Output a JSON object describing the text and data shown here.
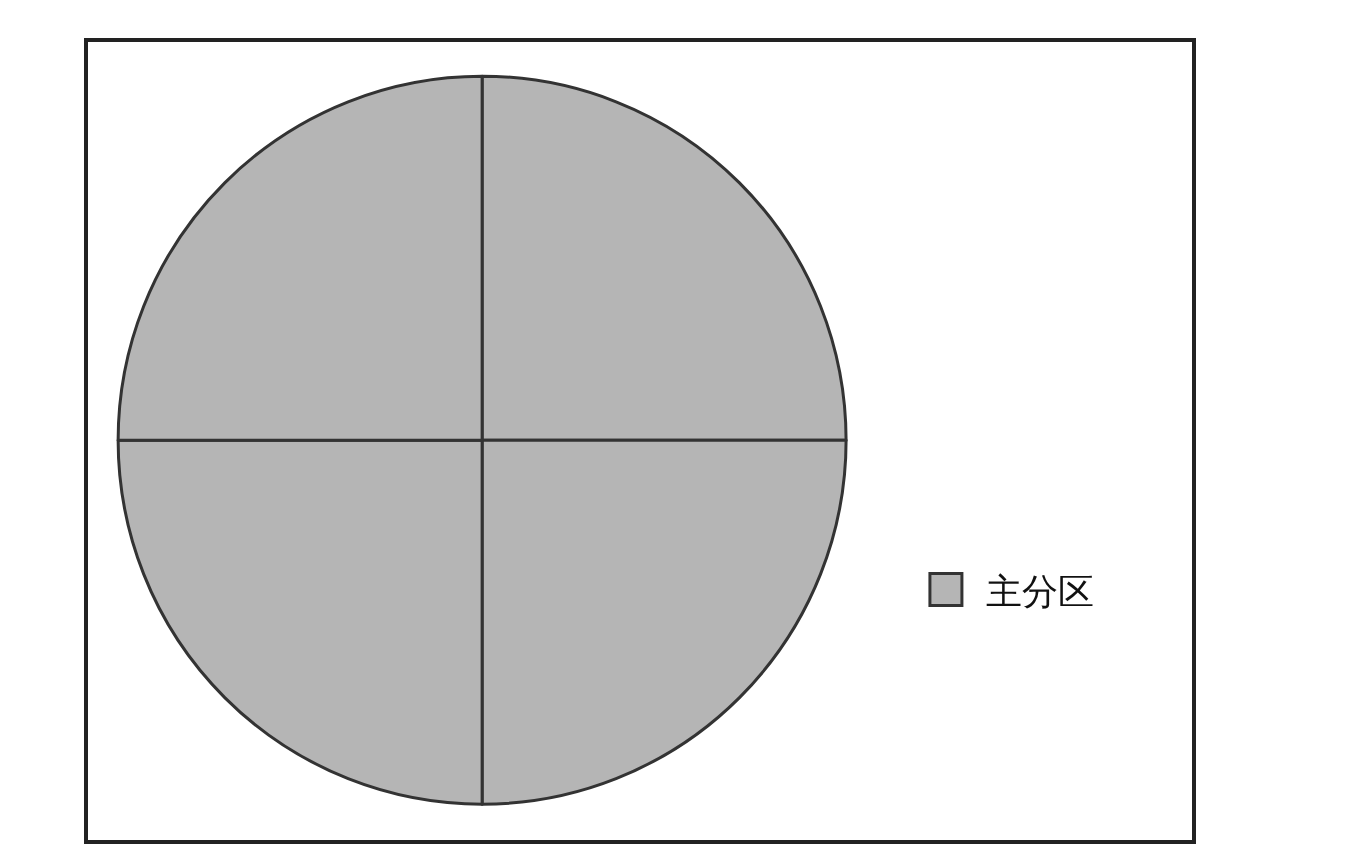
{
  "chart_data": {
    "type": "pie",
    "categories": [
      null,
      null,
      null,
      null
    ],
    "series": [
      {
        "name": "主分区",
        "color": "#b5b5b5",
        "values": [
          25,
          25,
          25,
          25
        ]
      }
    ],
    "legend": "right"
  }
}
